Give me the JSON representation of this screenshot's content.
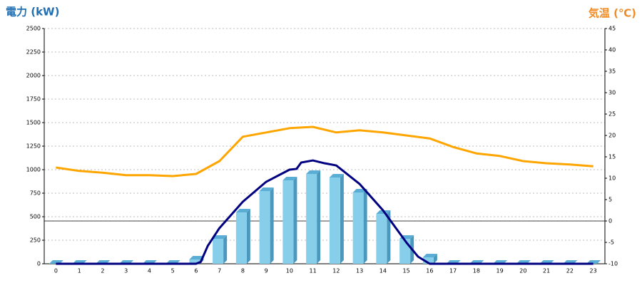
{
  "chart_data": {
    "type": "bar",
    "y_label": "電力 (kW)",
    "y2_label": "気温 (℃)",
    "categories": [
      "0",
      "1",
      "2",
      "3",
      "4",
      "5",
      "6",
      "7",
      "8",
      "9",
      "10",
      "11",
      "12",
      "13",
      "14",
      "15",
      "16",
      "17",
      "18",
      "19",
      "20",
      "21",
      "22",
      "23"
    ],
    "series": [
      {
        "type": "bar",
        "color": "#87ceeb",
        "values": [
          0,
          0,
          0,
          0,
          0,
          0,
          45,
          265,
          545,
          773,
          886,
          955,
          917,
          758,
          530,
          265,
          68,
          0,
          0,
          0,
          0,
          0,
          0,
          0
        ]
      },
      {
        "type": "line",
        "color": "#000080",
        "x": [
          0,
          1,
          2,
          3,
          4,
          5,
          6,
          6.2,
          6.5,
          7,
          8,
          9,
          10,
          10.3,
          10.5,
          11,
          11.5,
          12,
          13,
          14,
          15,
          15.5,
          16,
          17,
          18,
          19,
          20,
          21,
          22,
          23
        ],
        "values": [
          0,
          0,
          0,
          0,
          0,
          0,
          0,
          20,
          190,
          379,
          659,
          871,
          1000,
          1008,
          1076,
          1098,
          1068,
          1045,
          848,
          568,
          227,
          76,
          0,
          0,
          0,
          0,
          0,
          0,
          0,
          0
        ]
      },
      {
        "type": "line",
        "axis": "y2",
        "color": "#ffa500",
        "values": [
          12.5,
          11.7,
          11.3,
          10.7,
          10.7,
          10.5,
          11,
          14,
          19.7,
          20.7,
          21.7,
          22,
          20.7,
          21.2,
          20.7,
          20,
          19.3,
          17.3,
          15.8,
          15.2,
          14,
          13.5,
          13.2,
          12.8
        ]
      }
    ],
    "ylim": [
      0,
      2500
    ],
    "yticks": [
      0,
      250,
      500,
      750,
      1000,
      1250,
      1500,
      1750,
      2000,
      2250,
      2500
    ],
    "y2lim": [
      -10,
      45
    ],
    "y2ticks": [
      -10,
      -5,
      0,
      5,
      10,
      15,
      20,
      25,
      30,
      35,
      40,
      45
    ],
    "grid": true
  }
}
